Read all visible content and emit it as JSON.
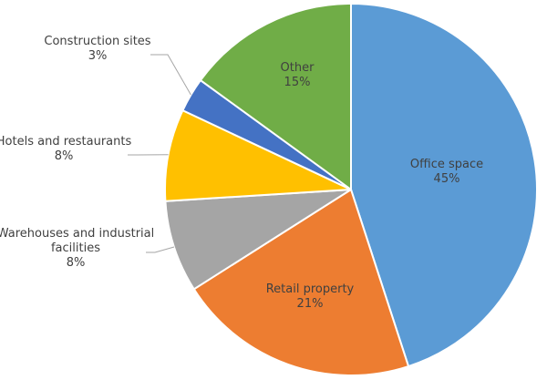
{
  "chart_data": {
    "type": "pie",
    "title": "",
    "slices": [
      {
        "label": "Office space",
        "value": 45,
        "display": "45%",
        "color": "#5b9bd5"
      },
      {
        "label": "Retail property",
        "value": 21,
        "display": "21%",
        "color": "#ed7d31"
      },
      {
        "label": "Warehouses and industrial facilities",
        "value": 8,
        "display": "8%",
        "color": "#a5a5a5"
      },
      {
        "label": "Hotels and restaurants",
        "value": 8,
        "display": "8%",
        "color": "#ffc000"
      },
      {
        "label": "Construction sites",
        "value": 3,
        "display": "3%",
        "color": "#4472c4"
      },
      {
        "label": "Other",
        "value": 15,
        "display": "15%",
        "color": "#70ad47"
      }
    ],
    "legend": "none",
    "data_labels": "category name and percentage"
  }
}
